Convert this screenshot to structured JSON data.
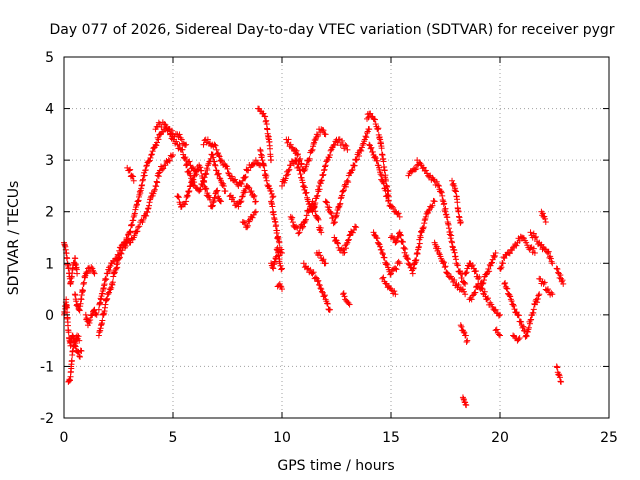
{
  "chart_data": {
    "type": "scatter",
    "title": "Day 077 of 2026, Sidereal Day-to-day VTEC variation (SDTVAR) for receiver pygr",
    "xlabel": "GPS time / hours",
    "ylabel": "SDTVAR / TECUs",
    "xlim": [
      0,
      25
    ],
    "ylim": [
      -2,
      5
    ],
    "xticks": [
      0,
      5,
      10,
      15,
      20,
      25
    ],
    "yticks": [
      -2,
      -1,
      0,
      1,
      2,
      3,
      4,
      5
    ],
    "xtick_labels": [
      "0",
      "5",
      "10",
      "15",
      "20",
      "25"
    ],
    "ytick_labels": [
      "-2",
      "-1",
      "0",
      "1",
      "2",
      "3",
      "4",
      "5"
    ],
    "grid": true,
    "marker": "+",
    "series_color": "#ff0000",
    "series": [
      {
        "name": "SDTVAR",
        "segments": [
          {
            "x": [
              0.0,
              0.1,
              0.2,
              0.3,
              0.4,
              0.5,
              0.6
            ],
            "y": [
              1.4,
              1.2,
              0.9,
              0.6,
              0.9,
              1.1,
              0.8
            ]
          },
          {
            "x": [
              0.0,
              0.1,
              0.2,
              0.3,
              0.4,
              0.5,
              0.6,
              0.7
            ],
            "y": [
              0.0,
              0.3,
              -0.3,
              -0.6,
              -0.4,
              -0.6,
              -0.4,
              -0.5
            ]
          },
          {
            "x": [
              0.2,
              0.25,
              0.3,
              0.35,
              0.4,
              0.5,
              0.6,
              0.7,
              0.8
            ],
            "y": [
              -1.3,
              -1.25,
              -1.2,
              -0.9,
              -0.7,
              -0.6,
              -0.7,
              -0.8,
              -0.7
            ]
          },
          {
            "x": [
              0.5,
              0.6,
              0.7,
              0.8,
              0.9,
              1.0,
              1.1,
              1.2,
              1.3,
              1.4
            ],
            "y": [
              0.4,
              0.2,
              0.1,
              0.3,
              0.6,
              0.8,
              0.9,
              0.85,
              0.9,
              0.8
            ]
          },
          {
            "x": [
              1.0,
              1.1,
              1.2,
              1.3,
              1.4,
              1.5
            ],
            "y": [
              0.0,
              -0.2,
              -0.1,
              0.0,
              0.1,
              0.0
            ]
          },
          {
            "x": [
              1.6,
              1.7,
              1.8,
              1.9,
              2.0,
              2.1,
              2.2,
              2.3,
              2.4,
              2.5,
              2.6,
              2.7,
              2.8,
              2.9,
              3.0,
              3.2,
              3.4,
              3.6,
              3.8,
              4.0,
              4.2,
              4.4,
              4.6,
              4.8,
              5.0
            ],
            "y": [
              -0.4,
              -0.2,
              0.0,
              0.2,
              0.4,
              0.5,
              0.6,
              0.8,
              0.9,
              1.1,
              1.2,
              1.3,
              1.3,
              1.4,
              1.4,
              1.5,
              1.7,
              1.8,
              2.0,
              2.3,
              2.5,
              2.8,
              2.9,
              3.0,
              3.1
            ]
          },
          {
            "x": [
              1.6,
              1.7,
              1.8,
              1.9,
              2.0,
              2.2,
              2.4,
              2.6,
              2.8,
              3.0,
              3.2,
              3.4,
              3.6,
              3.8,
              4.0,
              4.2,
              4.4,
              4.6,
              4.8,
              5.0,
              5.2,
              5.4,
              5.6,
              5.8,
              6.0
            ],
            "y": [
              0.1,
              0.3,
              0.5,
              0.7,
              0.8,
              1.0,
              1.1,
              1.3,
              1.4,
              1.6,
              1.9,
              2.2,
              2.6,
              2.9,
              3.1,
              3.3,
              3.5,
              3.6,
              3.6,
              3.4,
              3.3,
              3.2,
              3.0,
              2.9,
              2.8
            ]
          },
          {
            "x": [
              2.9,
              3.0,
              3.1,
              3.2
            ],
            "y": [
              2.85,
              2.8,
              2.7,
              2.6
            ]
          },
          {
            "x": [
              4.2,
              4.4,
              4.6,
              4.8,
              5.0,
              5.2,
              5.4,
              5.6
            ],
            "y": [
              3.6,
              3.7,
              3.7,
              3.6,
              3.5,
              3.5,
              3.4,
              3.3
            ]
          },
          {
            "x": [
              5.6,
              5.8,
              6.0,
              6.2,
              6.4,
              6.6,
              6.8,
              7.0,
              7.2,
              7.4
            ],
            "y": [
              2.9,
              2.7,
              2.5,
              2.4,
              2.6,
              2.9,
              3.1,
              2.8,
              2.6,
              2.4
            ]
          },
          {
            "x": [
              5.2,
              5.4,
              5.6,
              5.8,
              6.0,
              6.2,
              6.4,
              6.6,
              6.8,
              7.0,
              7.2
            ],
            "y": [
              2.3,
              2.1,
              2.2,
              2.5,
              2.7,
              2.9,
              2.6,
              2.3,
              2.1,
              2.4,
              2.2
            ]
          },
          {
            "x": [
              6.4,
              6.6,
              6.8,
              7.0,
              7.2,
              7.4,
              7.6,
              7.8,
              8.0,
              8.2,
              8.4,
              8.6,
              8.8,
              9.0
            ],
            "y": [
              3.3,
              3.4,
              3.3,
              3.2,
              3.0,
              2.9,
              2.7,
              2.6,
              2.5,
              2.6,
              2.8,
              2.9,
              3.0,
              2.9
            ]
          },
          {
            "x": [
              7.6,
              7.8,
              8.0,
              8.2,
              8.4,
              8.6,
              8.8
            ],
            "y": [
              2.3,
              2.2,
              2.1,
              2.3,
              2.5,
              2.4,
              2.2
            ]
          },
          {
            "x": [
              8.2,
              8.4,
              8.6,
              8.8
            ],
            "y": [
              1.8,
              1.7,
              1.9,
              2.0
            ]
          },
          {
            "x": [
              8.9,
              9.0,
              9.1,
              9.2,
              9.3,
              9.4,
              9.5
            ],
            "y": [
              4.0,
              3.95,
              3.9,
              3.85,
              3.7,
              3.4,
              3.0
            ]
          },
          {
            "x": [
              9.0,
              9.1,
              9.2,
              9.3,
              9.4,
              9.5,
              9.6
            ],
            "y": [
              3.2,
              3.0,
              2.8,
              2.6,
              2.5,
              2.4,
              2.3
            ]
          },
          {
            "x": [
              9.5,
              9.6,
              9.7,
              9.8,
              9.9,
              10.0
            ],
            "y": [
              2.2,
              2.0,
              1.8,
              1.5,
              1.3,
              1.2
            ]
          },
          {
            "x": [
              9.5,
              9.6,
              9.7,
              9.8,
              9.9,
              10.0
            ],
            "y": [
              1.0,
              0.9,
              1.1,
              1.3,
              1.0,
              0.9
            ]
          },
          {
            "x": [
              9.8,
              9.9,
              10.0
            ],
            "y": [
              0.55,
              0.6,
              0.5
            ]
          },
          {
            "x": [
              10.0,
              10.2,
              10.4,
              10.6,
              10.8,
              11.0,
              11.2,
              11.4,
              11.6,
              11.8,
              12.0,
              12.2,
              12.4,
              12.6,
              12.8,
              13.0
            ],
            "y": [
              2.5,
              2.7,
              2.9,
              3.0,
              2.8,
              2.5,
              2.2,
              2.0,
              2.3,
              2.6,
              2.9,
              3.1,
              3.3,
              3.4,
              3.3,
              3.2
            ]
          },
          {
            "x": [
              10.2,
              10.4,
              10.6,
              10.8,
              11.0,
              11.2,
              11.4,
              11.6,
              11.8,
              12.0
            ],
            "y": [
              3.4,
              3.3,
              3.2,
              3.0,
              2.8,
              3.0,
              3.2,
              3.5,
              3.6,
              3.5
            ]
          },
          {
            "x": [
              10.4,
              10.6,
              10.8,
              11.0,
              11.2,
              11.4,
              11.6,
              11.8
            ],
            "y": [
              1.9,
              1.7,
              1.6,
              1.8,
              2.0,
              2.2,
              1.9,
              1.6
            ]
          },
          {
            "x": [
              11.0,
              11.2,
              11.4,
              11.6,
              11.8,
              12.0,
              12.2
            ],
            "y": [
              1.0,
              0.9,
              0.8,
              0.7,
              0.5,
              0.3,
              0.1
            ]
          },
          {
            "x": [
              11.6,
              11.8,
              12.0
            ],
            "y": [
              1.2,
              1.1,
              1.0
            ]
          },
          {
            "x": [
              12.0,
              12.2,
              12.4,
              12.6,
              12.8,
              13.0,
              13.2,
              13.4,
              13.6,
              13.8,
              14.0
            ],
            "y": [
              2.2,
              2.0,
              1.8,
              2.1,
              2.4,
              2.6,
              2.8,
              3.0,
              3.2,
              3.4,
              3.6
            ]
          },
          {
            "x": [
              12.4,
              12.6,
              12.8,
              13.0,
              13.2,
              13.4
            ],
            "y": [
              1.5,
              1.3,
              1.2,
              1.4,
              1.6,
              1.7
            ]
          },
          {
            "x": [
              12.8,
              12.9,
              13.0,
              13.1
            ],
            "y": [
              0.4,
              0.3,
              0.25,
              0.2
            ]
          },
          {
            "x": [
              13.9,
              14.0,
              14.1,
              14.2,
              14.3,
              14.4,
              14.5,
              14.6,
              14.7,
              14.8,
              14.9
            ],
            "y": [
              3.8,
              3.9,
              3.85,
              3.8,
              3.7,
              3.6,
              3.4,
              3.1,
              2.8,
              2.5,
              2.3
            ]
          },
          {
            "x": [
              14.0,
              14.2,
              14.4,
              14.6,
              14.8,
              15.0,
              15.2,
              15.4
            ],
            "y": [
              3.3,
              3.1,
              2.9,
              2.6,
              2.3,
              2.1,
              2.0,
              1.9
            ]
          },
          {
            "x": [
              14.2,
              14.4,
              14.6,
              14.8,
              15.0,
              15.2,
              15.4
            ],
            "y": [
              1.6,
              1.4,
              1.2,
              1.0,
              0.8,
              0.9,
              1.0
            ]
          },
          {
            "x": [
              14.6,
              14.8,
              15.0,
              15.2
            ],
            "y": [
              0.7,
              0.6,
              0.5,
              0.4
            ]
          },
          {
            "x": [
              15.0,
              15.2,
              15.4,
              15.6,
              15.8,
              16.0,
              16.2,
              16.4,
              16.6,
              16.8,
              17.0
            ],
            "y": [
              1.5,
              1.4,
              1.6,
              1.3,
              1.0,
              0.8,
              1.2,
              1.6,
              1.9,
              2.1,
              2.2
            ]
          },
          {
            "x": [
              15.8,
              16.0,
              16.2
            ],
            "y": [
              2.7,
              2.8,
              2.9
            ]
          },
          {
            "x": [
              16.2,
              16.4,
              16.6,
              16.8,
              17.0,
              17.2,
              17.4,
              17.6,
              17.8,
              18.0,
              18.2,
              18.4
            ],
            "y": [
              3.0,
              2.9,
              2.8,
              2.7,
              2.6,
              2.5,
              2.2,
              1.8,
              1.4,
              1.0,
              0.8,
              0.6
            ]
          },
          {
            "x": [
              17.0,
              17.2,
              17.4,
              17.6,
              17.8,
              18.0,
              18.2,
              18.4
            ],
            "y": [
              1.4,
              1.2,
              1.0,
              0.8,
              0.7,
              0.6,
              0.5,
              0.4
            ]
          },
          {
            "x": [
              17.8,
              17.9,
              18.0,
              18.1,
              18.2
            ],
            "y": [
              2.6,
              2.5,
              2.3,
              2.0,
              1.8
            ]
          },
          {
            "x": [
              18.2,
              18.3,
              18.4,
              18.5
            ],
            "y": [
              -0.2,
              -0.3,
              -0.4,
              -0.5
            ]
          },
          {
            "x": [
              18.3,
              18.35,
              18.4,
              18.45
            ],
            "y": [
              -1.6,
              -1.65,
              -1.7,
              -1.75
            ]
          },
          {
            "x": [
              18.4,
              18.6,
              18.8,
              19.0,
              19.2,
              19.4,
              19.6,
              19.8
            ],
            "y": [
              0.8,
              1.0,
              0.9,
              0.7,
              0.6,
              0.8,
              1.0,
              1.2
            ]
          },
          {
            "x": [
              18.6,
              18.8,
              19.0,
              19.2,
              19.4,
              19.6,
              19.8,
              20.0
            ],
            "y": [
              0.3,
              0.4,
              0.6,
              0.5,
              0.3,
              0.2,
              0.1,
              0.0
            ]
          },
          {
            "x": [
              19.8,
              19.9,
              20.0
            ],
            "y": [
              -0.3,
              -0.35,
              -0.4
            ]
          },
          {
            "x": [
              20.0,
              20.2,
              20.4,
              20.6,
              20.8,
              21.0,
              21.2,
              21.4,
              21.6
            ],
            "y": [
              0.9,
              1.1,
              1.2,
              1.3,
              1.4,
              1.5,
              1.4,
              1.3,
              1.2
            ]
          },
          {
            "x": [
              20.2,
              20.4,
              20.6,
              20.8,
              21.0,
              21.2,
              21.4,
              21.6,
              21.8
            ],
            "y": [
              0.6,
              0.4,
              0.2,
              0.0,
              -0.2,
              -0.4,
              -0.1,
              0.2,
              0.4
            ]
          },
          {
            "x": [
              20.6,
              20.7,
              20.8,
              20.9
            ],
            "y": [
              -0.4,
              -0.45,
              -0.5,
              -0.45
            ]
          },
          {
            "x": [
              21.4,
              21.6,
              21.8,
              22.0,
              22.2,
              22.4
            ],
            "y": [
              1.6,
              1.5,
              1.4,
              1.3,
              1.2,
              1.0
            ]
          },
          {
            "x": [
              21.9,
              22.0,
              22.1
            ],
            "y": [
              2.0,
              1.9,
              1.8
            ]
          },
          {
            "x": [
              21.8,
              22.0,
              22.2,
              22.4
            ],
            "y": [
              0.7,
              0.6,
              0.5,
              0.4
            ]
          },
          {
            "x": [
              22.6,
              22.7,
              22.8,
              22.9
            ],
            "y": [
              0.9,
              0.8,
              0.7,
              0.6
            ]
          },
          {
            "x": [
              22.6,
              22.7,
              22.8
            ],
            "y": [
              -1.0,
              -1.15,
              -1.3
            ]
          }
        ]
      }
    ]
  }
}
